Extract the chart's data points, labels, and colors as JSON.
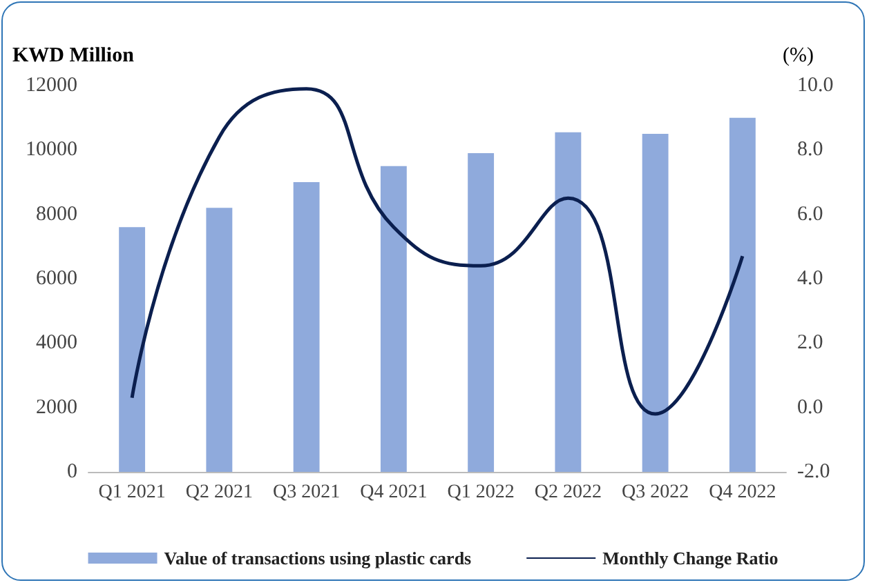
{
  "chart_data": {
    "type": "bar",
    "ylabel": "KWD Million",
    "y2label": "(%)",
    "categories": [
      "Q1 2021",
      "Q2 2021",
      "Q3 2021",
      "Q4 2021",
      "Q1 2022",
      "Q2 2022",
      "Q3 2022",
      "Q4 2022"
    ],
    "series": [
      {
        "name": "Value of transactions using plastic cards",
        "color": "#8faadc",
        "values": [
          7600,
          8200,
          9000,
          9500,
          9900,
          10550,
          10500,
          11000
        ]
      },
      {
        "name": "Monthly Change Ratio",
        "type": "line",
        "axis": "y2",
        "color": "#0b1f4f",
        "values": [
          0.3,
          8.4,
          9.9,
          5.6,
          4.4,
          6.5,
          -0.2,
          4.7
        ]
      }
    ],
    "ylim": [
      0,
      12000
    ],
    "yticks": [
      0,
      2000,
      4000,
      6000,
      8000,
      10000,
      12000
    ],
    "y2lim": [
      -2,
      10
    ],
    "y2ticks": [
      {
        "value": -2,
        "label": "-2.0"
      },
      {
        "value": 0,
        "label": "0.0"
      },
      {
        "value": 2,
        "label": "2.0"
      },
      {
        "value": 4,
        "label": "4.0"
      },
      {
        "value": 6,
        "label": "6.0"
      },
      {
        "value": 8,
        "label": "8.0"
      },
      {
        "value": 10,
        "label": "10.0"
      }
    ],
    "grid": false,
    "legend": "bottom",
    "marker": "none"
  }
}
